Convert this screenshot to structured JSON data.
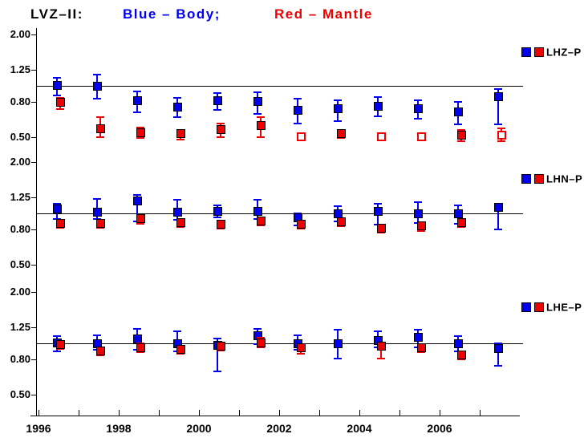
{
  "title": {
    "prefix": "LVZ–II:",
    "body_label": "Blue – Body;",
    "mantle_label": "Red – Mantle"
  },
  "colors": {
    "body": "#0000ee",
    "mantle": "#ee0000",
    "axis": "#000000",
    "background": "#ffffff"
  },
  "x_axis": {
    "tick_years": [
      1996,
      1997,
      1998,
      1999,
      2000,
      2001,
      2002,
      2003,
      2004,
      2005,
      2006,
      2007
    ],
    "labels": [
      {
        "year": 1996,
        "text": "1996"
      },
      {
        "year": 1998,
        "text": "1998"
      },
      {
        "year": 2000,
        "text": "2000"
      },
      {
        "year": 2002,
        "text": "2002"
      },
      {
        "year": 2004,
        "text": "2004"
      },
      {
        "year": 2006,
        "text": "2006"
      }
    ]
  },
  "y_axis": {
    "scale": "log",
    "tick_values": [
      2.0,
      1.25,
      0.8,
      0.5
    ],
    "tick_labels": [
      "2.00",
      "1.25",
      "0.80",
      "0.50"
    ],
    "reference_value": 1.0
  },
  "chart_data": [
    {
      "name": "LHZ–P",
      "type": "scatter",
      "scale": "log",
      "ref_line": 1.0,
      "ylim": [
        0.45,
        2.2
      ],
      "x": [
        1996.5,
        1997.5,
        1998.5,
        1999.5,
        2000.5,
        2001.5,
        2002.5,
        2003.5,
        2004.5,
        2005.5,
        2006.5,
        2007.5
      ],
      "series": [
        {
          "name": "Body",
          "color": "#0000ee",
          "values": [
            1.01,
            0.99,
            0.82,
            0.75,
            0.82,
            0.81,
            0.72,
            0.73,
            0.76,
            0.73,
            0.7,
            0.86
          ],
          "err_hi": [
            1.11,
            1.16,
            0.93,
            0.85,
            0.91,
            0.92,
            0.84,
            0.82,
            0.86,
            0.82,
            0.8,
            0.96
          ],
          "err_lo": [
            0.88,
            0.84,
            0.7,
            0.65,
            0.72,
            0.68,
            0.6,
            0.62,
            0.66,
            0.64,
            0.59,
            0.59
          ],
          "open": [
            false,
            false,
            false,
            false,
            false,
            false,
            false,
            false,
            false,
            false,
            false,
            false
          ]
        },
        {
          "name": "Mantle",
          "color": "#ee0000",
          "values": [
            0.8,
            0.56,
            0.53,
            0.52,
            0.55,
            0.58,
            0.5,
            0.52,
            0.5,
            0.5,
            0.51,
            0.51
          ],
          "err_hi": [
            0.85,
            0.65,
            0.57,
            0.55,
            0.6,
            0.65,
            null,
            0.55,
            null,
            null,
            0.55,
            0.56
          ],
          "err_lo": [
            0.73,
            0.5,
            0.49,
            0.48,
            0.5,
            0.5,
            null,
            0.49,
            null,
            null,
            0.47,
            0.47
          ],
          "open": [
            false,
            false,
            false,
            false,
            false,
            false,
            true,
            false,
            true,
            true,
            false,
            true
          ]
        }
      ]
    },
    {
      "name": "LHN–P",
      "type": "scatter",
      "scale": "log",
      "ref_line": 1.0,
      "ylim": [
        0.45,
        2.2
      ],
      "x": [
        1996.5,
        1997.5,
        1998.5,
        1999.5,
        2000.5,
        2001.5,
        2002.5,
        2003.5,
        2004.5,
        2005.5,
        2006.5,
        2007.5
      ],
      "series": [
        {
          "name": "Body",
          "color": "#0000ee",
          "values": [
            1.06,
            1.02,
            1.18,
            1.02,
            1.03,
            1.03,
            0.94,
            0.99,
            1.03,
            0.99,
            0.99,
            1.09
          ],
          "err_hi": [
            1.14,
            1.22,
            1.29,
            1.2,
            1.11,
            1.21,
            1.0,
            1.1,
            1.14,
            1.16,
            1.12,
            1.1
          ],
          "err_lo": [
            0.93,
            0.93,
            0.9,
            0.92,
            0.95,
            0.93,
            0.85,
            0.9,
            0.86,
            0.88,
            0.87,
            0.8
          ],
          "open": [
            false,
            false,
            false,
            false,
            false,
            false,
            false,
            false,
            false,
            false,
            false,
            false
          ]
        },
        {
          "name": "Mantle",
          "color": "#ee0000",
          "values": [
            0.87,
            0.87,
            0.93,
            0.88,
            0.86,
            0.9,
            0.86,
            0.89,
            0.82,
            0.84,
            0.88,
            null
          ],
          "err_hi": [
            0.91,
            0.91,
            0.98,
            0.92,
            0.9,
            0.95,
            0.9,
            0.93,
            0.86,
            0.88,
            0.92,
            null
          ],
          "err_lo": [
            0.82,
            0.82,
            0.87,
            0.83,
            0.81,
            0.85,
            0.81,
            0.84,
            0.77,
            0.79,
            0.83,
            null
          ],
          "open": [
            false,
            false,
            false,
            false,
            false,
            false,
            false,
            false,
            false,
            false,
            false,
            false
          ]
        }
      ]
    },
    {
      "name": "LHE–P",
      "type": "scatter",
      "scale": "log",
      "ref_line": 1.0,
      "ylim": [
        0.45,
        2.2
      ],
      "x": [
        1996.5,
        1997.5,
        1998.5,
        1999.5,
        2000.5,
        2001.5,
        2002.5,
        2003.5,
        2004.5,
        2005.5,
        2006.5,
        2007.5
      ],
      "series": [
        {
          "name": "Body",
          "color": "#0000ee",
          "values": [
            1.01,
            1.0,
            1.06,
            1.0,
            0.97,
            1.11,
            1.0,
            1.0,
            1.04,
            1.09,
            1.0,
            0.93
          ],
          "err_hi": [
            1.1,
            1.12,
            1.22,
            1.18,
            1.07,
            1.22,
            1.12,
            1.2,
            1.18,
            1.2,
            1.1,
            1.0
          ],
          "err_lo": [
            0.9,
            0.92,
            0.92,
            0.9,
            0.68,
            0.99,
            0.92,
            0.81,
            0.95,
            0.95,
            0.9,
            0.74
          ],
          "open": [
            false,
            false,
            false,
            false,
            false,
            false,
            false,
            false,
            false,
            false,
            false,
            false
          ]
        },
        {
          "name": "Mantle",
          "color": "#ee0000",
          "values": [
            0.98,
            0.9,
            0.94,
            0.92,
            0.96,
            1.01,
            0.94,
            null,
            0.96,
            0.94,
            0.85,
            null
          ],
          "err_hi": [
            1.03,
            0.95,
            1.0,
            0.97,
            1.01,
            1.08,
            0.99,
            null,
            1.01,
            0.99,
            0.9,
            null
          ],
          "err_lo": [
            0.93,
            0.85,
            0.89,
            0.87,
            0.91,
            0.95,
            0.87,
            null,
            0.81,
            0.89,
            0.8,
            null
          ],
          "open": [
            false,
            false,
            false,
            false,
            false,
            false,
            false,
            false,
            false,
            false,
            false,
            false
          ]
        }
      ]
    }
  ]
}
